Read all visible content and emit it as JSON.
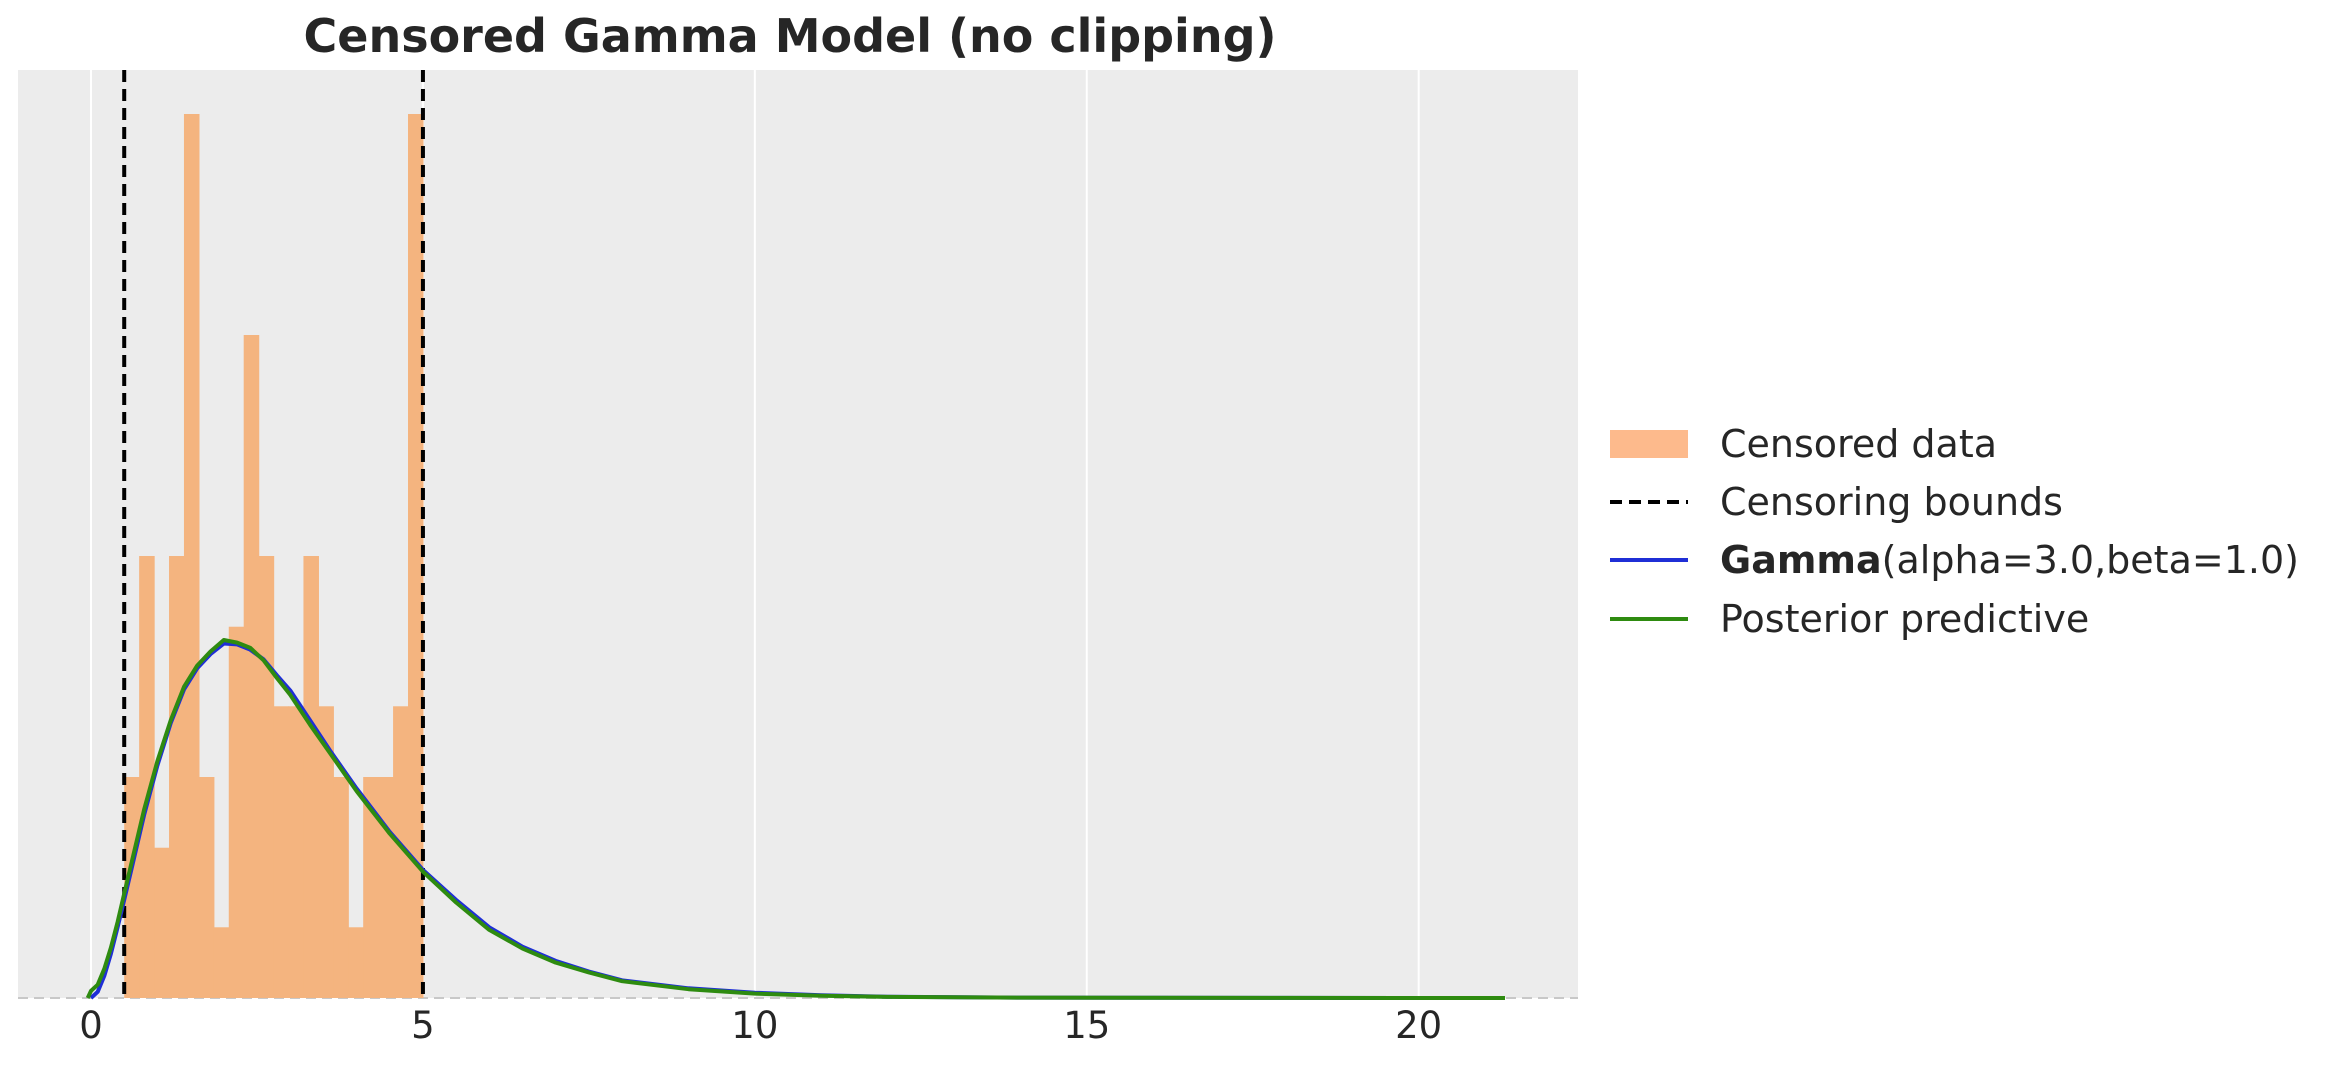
{
  "chart_data": {
    "type": "histogram",
    "title": "Censored Gamma Model (no clipping)",
    "xlabel": "",
    "ylabel": "",
    "xlim": [
      -1.1,
      22.4
    ],
    "ylim": [
      0,
      1
    ],
    "x_ticks": [
      0,
      5,
      10,
      15,
      20
    ],
    "x_tick_labels": [
      "0",
      "5",
      "10",
      "15",
      "20"
    ],
    "grid": true,
    "legend_position": "right",
    "colors": {
      "histogram": "#f4b47f",
      "histogram_legend": "#fdba8c",
      "bounds": "#000000",
      "gamma": "#1f2fd6",
      "posterior": "#2e8b10",
      "plot_bg": "#ececec",
      "grid": "#ffffff"
    },
    "histogram": {
      "bin_edges": [
        0.5,
        0.725,
        0.95,
        1.175,
        1.4,
        1.625,
        1.85,
        2.075,
        2.3,
        2.525,
        2.75,
        2.975,
        3.2,
        3.425,
        3.65,
        3.875,
        4.1,
        4.325,
        4.55,
        4.775,
        5.0
      ],
      "heights": [
        0.25,
        0.5,
        0.17,
        0.5,
        1.0,
        0.25,
        0.08,
        0.42,
        0.75,
        0.5,
        0.33,
        0.33,
        0.5,
        0.33,
        0.25,
        0.08,
        0.25,
        0.25,
        0.33,
        1.0
      ]
    },
    "censoring_bounds": [
      0.5,
      5.0
    ],
    "series": [
      {
        "name": "Gamma",
        "label_params": "(alpha=3.0,beta=1.0)",
        "x": [
          0,
          0.1,
          0.2,
          0.3,
          0.4,
          0.5,
          0.6,
          0.8,
          1.0,
          1.2,
          1.4,
          1.6,
          1.8,
          2.0,
          2.2,
          2.4,
          2.6,
          2.8,
          3.0,
          3.3,
          3.6,
          4.0,
          4.5,
          5.0,
          5.5,
          6.0,
          6.5,
          7.0,
          7.5,
          8.0,
          9.0,
          10.0,
          11.0,
          12.0,
          14.0,
          16.0,
          18.0,
          20.0,
          21.3
        ],
        "y": [
          0.0,
          0.007,
          0.025,
          0.05,
          0.08,
          0.111,
          0.143,
          0.207,
          0.263,
          0.311,
          0.349,
          0.373,
          0.389,
          0.401,
          0.4,
          0.394,
          0.383,
          0.365,
          0.348,
          0.314,
          0.28,
          0.237,
          0.188,
          0.145,
          0.111,
          0.08,
          0.058,
          0.042,
          0.03,
          0.02,
          0.011,
          0.006,
          0.003,
          0.0015,
          0.0005,
          0.0002,
          0.0001,
          0.0,
          0.0
        ]
      },
      {
        "name": "Posterior predictive",
        "x": [
          -0.05,
          0.0,
          0.1,
          0.2,
          0.3,
          0.4,
          0.5,
          0.6,
          0.8,
          1.0,
          1.2,
          1.4,
          1.6,
          1.8,
          2.0,
          2.2,
          2.4,
          2.6,
          2.8,
          3.0,
          3.3,
          3.6,
          4.0,
          4.5,
          5.0,
          5.5,
          6.0,
          6.5,
          7.0,
          7.5,
          8.0,
          9.0,
          10.0,
          11.0,
          12.0,
          14.0,
          16.0,
          18.0,
          20.0,
          21.3
        ],
        "y": [
          0.0,
          0.008,
          0.015,
          0.033,
          0.057,
          0.086,
          0.118,
          0.15,
          0.213,
          0.268,
          0.314,
          0.352,
          0.376,
          0.392,
          0.405,
          0.402,
          0.396,
          0.382,
          0.362,
          0.343,
          0.309,
          0.277,
          0.234,
          0.186,
          0.143,
          0.108,
          0.077,
          0.056,
          0.04,
          0.029,
          0.019,
          0.01,
          0.005,
          0.0025,
          0.0012,
          0.0004,
          0.0002,
          0.0001,
          0.0,
          0.0
        ]
      }
    ],
    "legend": {
      "censored_data": "Censored data",
      "censoring_bounds": "Censoring bounds",
      "gamma_bold": "Gamma",
      "gamma_params": "(alpha=3.0,beta=1.0)",
      "posterior": "Posterior predictive"
    }
  }
}
